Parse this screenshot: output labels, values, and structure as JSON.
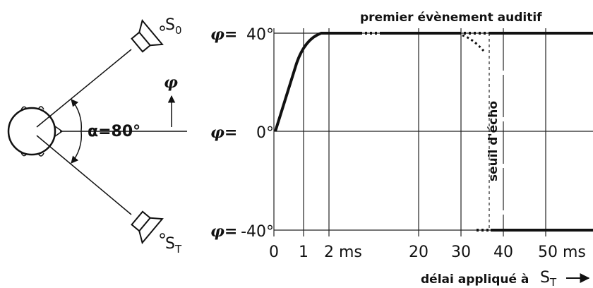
{
  "left": {
    "source_top": {
      "letter": "S",
      "sub": "0"
    },
    "source_bottom": {
      "letter": "S",
      "sub": "T"
    },
    "angle_symbol": "φ",
    "angle_label": "α=80°"
  },
  "plot": {
    "y_labels": [
      {
        "symbol": "φ=",
        "value": "40°"
      },
      {
        "symbol": "φ=",
        "value": "0°"
      },
      {
        "symbol": "φ=",
        "value": "-40°"
      }
    ],
    "x_labels": [
      "0",
      "1",
      "2 ms",
      "20",
      "30",
      "40",
      "50 ms"
    ],
    "annotation": "premier évènement auditif",
    "threshold_label": "seuil d'écho"
  },
  "footer": {
    "text": "délai appliqué à",
    "letter": "S",
    "sub": "T"
  }
}
